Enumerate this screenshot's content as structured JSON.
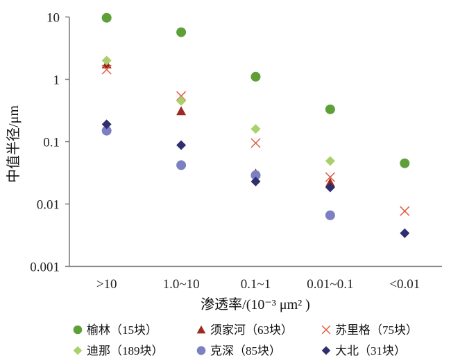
{
  "chart_data": {
    "type": "scatter",
    "xlabel": "渗透率/(10⁻³ μm² )",
    "ylabel": "中值半径/μm",
    "yscale": "log",
    "ylim": [
      0.001,
      10
    ],
    "yticks": [
      "10",
      "1",
      "0.1",
      "0.01",
      "0.001"
    ],
    "yticks_values": [
      10,
      1,
      0.1,
      0.01,
      0.001
    ],
    "categories": [
      ">10",
      "1.0~10",
      "0.1~1",
      "0.01~0.1",
      "<0.01"
    ],
    "grid": false,
    "legend_placement": "bottom",
    "series": [
      {
        "name": "榆林（15块）",
        "marker": "circle",
        "color": "#5f9f38",
        "values": [
          9.7,
          5.7,
          1.1,
          0.33,
          0.045
        ]
      },
      {
        "name": "须家河（63块）",
        "marker": "triangle",
        "color": "#9c2b1f",
        "values": [
          1.75,
          0.31,
          0.031,
          0.022,
          null
        ]
      },
      {
        "name": "苏里格（75块）",
        "marker": "x",
        "color": "#e05a3e",
        "values": [
          1.43,
          0.54,
          0.095,
          0.027,
          0.0077
        ]
      },
      {
        "name": "迪那（189块）",
        "marker": "diamond",
        "color": "#a9d06c",
        "values": [
          2.0,
          0.45,
          0.16,
          0.049,
          null
        ]
      },
      {
        "name": "克深（85块）",
        "marker": "circle",
        "color": "#7c80c0",
        "values": [
          0.15,
          0.042,
          0.029,
          0.0066,
          null
        ]
      },
      {
        "name": "大北（31块）",
        "marker": "diamond",
        "color": "#2f2f6f",
        "values": [
          0.19,
          0.088,
          0.023,
          0.0185,
          0.0034
        ]
      }
    ]
  }
}
